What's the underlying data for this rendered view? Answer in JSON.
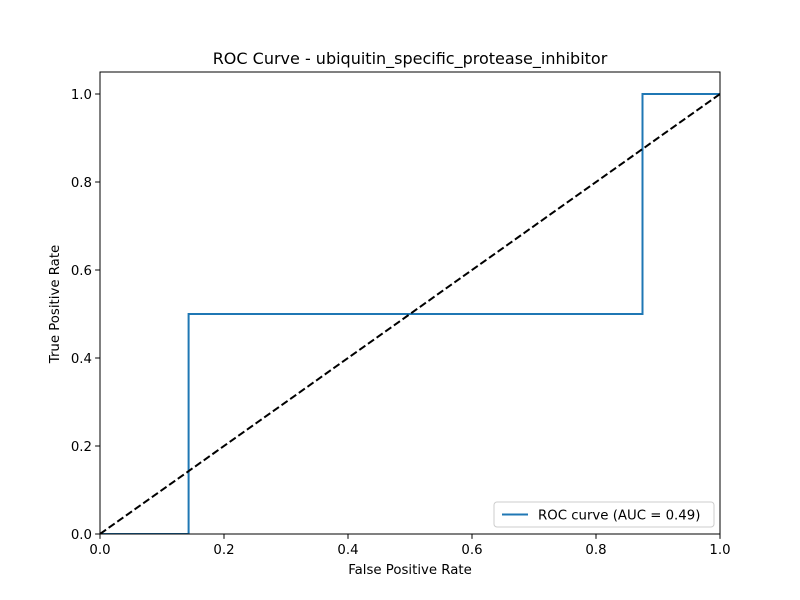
{
  "chart_data": {
    "type": "line",
    "title": "ROC Curve - ubiquitin_specific_protease_inhibitor",
    "xlabel": "False Positive Rate",
    "ylabel": "True Positive Rate",
    "xlim": [
      0.0,
      1.0
    ],
    "ylim": [
      0.0,
      1.05
    ],
    "x_ticks": [
      "0.0",
      "0.2",
      "0.4",
      "0.6",
      "0.8",
      "1.0"
    ],
    "y_ticks": [
      "0.0",
      "0.2",
      "0.4",
      "0.6",
      "0.8",
      "1.0"
    ],
    "grid": false,
    "legend_position": "lower-right",
    "series": [
      {
        "name": "ROC curve (AUC = 0.49)",
        "color": "#1f77b4",
        "line_style": "solid",
        "x": [
          0.0,
          0.0,
          0.1429,
          0.1429,
          0.875,
          0.875,
          1.0
        ],
        "y": [
          0.0,
          0.0,
          0.0,
          0.5,
          0.5,
          1.0,
          1.0
        ]
      },
      {
        "color": "#000000",
        "line_style": "dashed",
        "x": [
          0.0,
          1.0
        ],
        "y": [
          0.0,
          1.0
        ]
      }
    ]
  }
}
